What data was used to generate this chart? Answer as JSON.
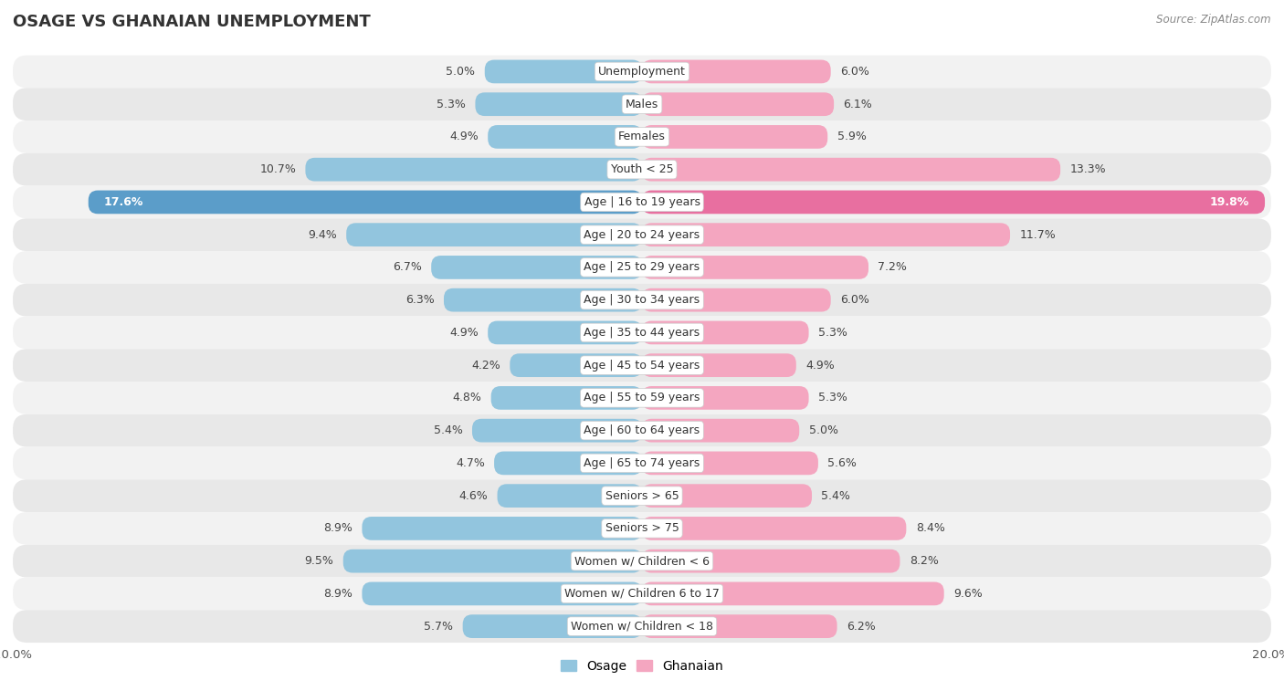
{
  "title": "OSAGE VS GHANAIAN UNEMPLOYMENT",
  "source": "Source: ZipAtlas.com",
  "categories": [
    "Unemployment",
    "Males",
    "Females",
    "Youth < 25",
    "Age | 16 to 19 years",
    "Age | 20 to 24 years",
    "Age | 25 to 29 years",
    "Age | 30 to 34 years",
    "Age | 35 to 44 years",
    "Age | 45 to 54 years",
    "Age | 55 to 59 years",
    "Age | 60 to 64 years",
    "Age | 65 to 74 years",
    "Seniors > 65",
    "Seniors > 75",
    "Women w/ Children < 6",
    "Women w/ Children 6 to 17",
    "Women w/ Children < 18"
  ],
  "osage": [
    5.0,
    5.3,
    4.9,
    10.7,
    17.6,
    9.4,
    6.7,
    6.3,
    4.9,
    4.2,
    4.8,
    5.4,
    4.7,
    4.6,
    8.9,
    9.5,
    8.9,
    5.7
  ],
  "ghanaian": [
    6.0,
    6.1,
    5.9,
    13.3,
    19.8,
    11.7,
    7.2,
    6.0,
    5.3,
    4.9,
    5.3,
    5.0,
    5.6,
    5.4,
    8.4,
    8.2,
    9.6,
    6.2
  ],
  "osage_color": "#92c5de",
  "ghanaian_color": "#f4a6c0",
  "osage_highlight_color": "#5b9dc9",
  "ghanaian_highlight_color": "#e86fa0",
  "background_color": "#ffffff",
  "row_color_light": "#f2f2f2",
  "row_color_dark": "#e8e8e8",
  "xlim": 20.0,
  "label_threshold": 14.0,
  "legend_osage": "Osage",
  "legend_ghanaian": "Ghanaian"
}
